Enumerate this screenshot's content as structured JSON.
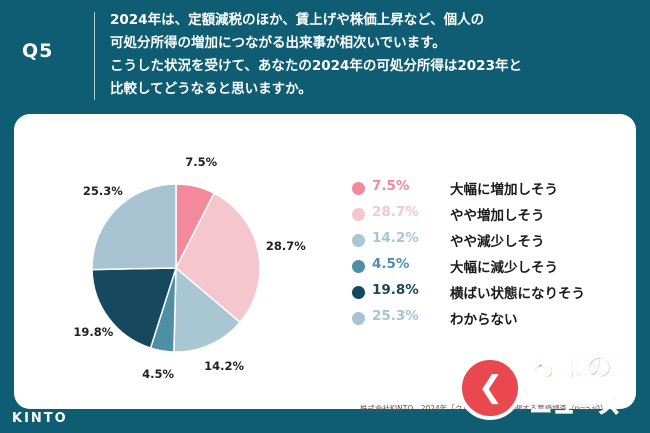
{
  "header": {
    "qnum": "Q5",
    "question_lines": [
      "2024年は、定額減税のほか、賃上げや株価上昇など、個人の",
      "可処分所得の増加につながる出来事が相次いでいます。",
      "こうした状況を受けて、あなたの2024年の可処分所得は2023年と",
      "比較してどうなると思いますか。"
    ]
  },
  "chart_data": {
    "type": "pie",
    "categories": [
      "大幅に増加しそう",
      "やや増加しそう",
      "やや減少しそう",
      "大幅に減少しそう",
      "横ばい状態になりそう",
      "わからない"
    ],
    "values": [
      7.5,
      28.7,
      14.2,
      4.5,
      19.8,
      25.3
    ],
    "labels": [
      "7.5%",
      "28.7%",
      "14.2%",
      "4.5%",
      "19.8%",
      "25.3%"
    ],
    "colors": [
      "#f3899b",
      "#f6c6cf",
      "#a9c7d3",
      "#4f8fa5",
      "#16495d",
      "#a8c4d3"
    ],
    "legend_placement": "right"
  },
  "footer": {
    "logo": "KINTO",
    "source": "株式会社KINTO　2024年「クルマとお金」に関する意識調査（n=530）"
  },
  "watermark": {
    "line1": "るまの",
    "line2": "ニュース"
  }
}
